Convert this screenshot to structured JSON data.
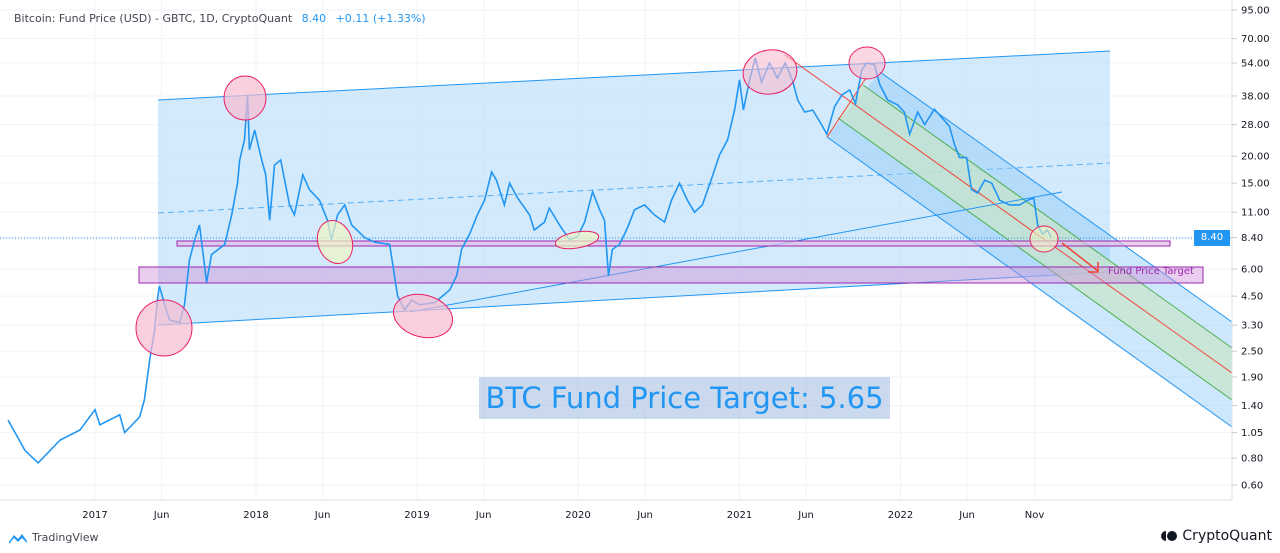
{
  "legend": {
    "title": "Bitcoin: Fund Price (USD) - GBTC, 1D, CryptoQuant",
    "last": "8.40",
    "change": "+0.11 (+1.33%)"
  },
  "annotations": {
    "big_label": "BTC Fund Price Target: 5.65",
    "zone_label": "Fund Price Target",
    "last_price_tag": "8.40"
  },
  "footer": {
    "left_brand": "TradingView",
    "right_brand": "CryptoQuant"
  },
  "colors": {
    "series": "#2196f3",
    "channel_fill": "#bbdefb",
    "zone": "#9c27b0",
    "highlight": "#e91e63",
    "pitchfork_median": "#f44336",
    "pitchfork_inner": "#4caf50"
  },
  "chart_data": {
    "type": "line",
    "title": "Bitcoin: Fund Price (USD) - GBTC, 1D, CryptoQuant",
    "y_scale": "log",
    "ylim": [
      0.55,
      95
    ],
    "grid": true,
    "y_ticks": [
      "95.00",
      "70.00",
      "54.00",
      "38.00",
      "28.00",
      "20.00",
      "15.00",
      "11.00",
      "8.40",
      "6.00",
      "4.50",
      "3.30",
      "2.50",
      "1.90",
      "1.40",
      "1.05",
      "0.80",
      "0.60"
    ],
    "x_ticks": [
      {
        "label": "2017",
        "date": "2017-01-01"
      },
      {
        "label": "Jun",
        "date": "2017-06-01"
      },
      {
        "label": "2018",
        "date": "2018-01-01"
      },
      {
        "label": "Jun",
        "date": "2018-06-01"
      },
      {
        "label": "2019",
        "date": "2019-01-01"
      },
      {
        "label": "Jun",
        "date": "2019-06-01"
      },
      {
        "label": "2020",
        "date": "2020-01-01"
      },
      {
        "label": "Jun",
        "date": "2020-06-01"
      },
      {
        "label": "2021",
        "date": "2021-01-01"
      },
      {
        "label": "Jun",
        "date": "2021-06-01"
      },
      {
        "label": "2022",
        "date": "2022-01-01"
      },
      {
        "label": "Jun",
        "date": "2022-06-01"
      },
      {
        "label": "Nov",
        "date": "2022-11-01"
      }
    ],
    "series": [
      {
        "points": [
          [
            "2016-06-18",
            1.2
          ],
          [
            "2016-07-26",
            0.87
          ],
          [
            "2016-08-25",
            0.76
          ],
          [
            "2016-10-14",
            0.97
          ],
          [
            "2016-11-28",
            1.08
          ],
          [
            "2017-01-01",
            1.34
          ],
          [
            "2017-01-12",
            1.14
          ],
          [
            "2017-02-26",
            1.27
          ],
          [
            "2017-03-09",
            1.05
          ],
          [
            "2017-04-12",
            1.24
          ],
          [
            "2017-04-23",
            1.49
          ],
          [
            "2017-05-05",
            2.28
          ],
          [
            "2017-05-16",
            3.14
          ],
          [
            "2017-05-23",
            4.41
          ],
          [
            "2017-05-27",
            5.0
          ],
          [
            "2017-06-08",
            4.1
          ],
          [
            "2017-06-19",
            3.49
          ],
          [
            "2017-07-12",
            3.4
          ],
          [
            "2017-07-23",
            4.1
          ],
          [
            "2017-08-03",
            6.6
          ],
          [
            "2017-08-15",
            8.2
          ],
          [
            "2017-08-26",
            9.6
          ],
          [
            "2017-09-11",
            5.2
          ],
          [
            "2017-09-22",
            7.0
          ],
          [
            "2017-10-22",
            7.8
          ],
          [
            "2017-11-07",
            10.7
          ],
          [
            "2017-11-20",
            15.0
          ],
          [
            "2017-11-25",
            19.2
          ],
          [
            "2017-12-06",
            23.8
          ],
          [
            "2017-12-13",
            38.5
          ],
          [
            "2017-12-17",
            21.4
          ],
          [
            "2017-12-29",
            26.4
          ],
          [
            "2018-01-14",
            19.2
          ],
          [
            "2018-01-23",
            16.4
          ],
          [
            "2018-02-01",
            10.1
          ],
          [
            "2018-02-12",
            18.2
          ],
          [
            "2018-02-26",
            19.2
          ],
          [
            "2018-03-18",
            11.9
          ],
          [
            "2018-03-29",
            10.7
          ],
          [
            "2018-04-17",
            16.4
          ],
          [
            "2018-05-02",
            14.0
          ],
          [
            "2018-05-25",
            12.5
          ],
          [
            "2018-06-12",
            10.1
          ],
          [
            "2018-06-21",
            8.2
          ],
          [
            "2018-07-05",
            10.7
          ],
          [
            "2018-07-21",
            11.9
          ],
          [
            "2018-08-06",
            9.6
          ],
          [
            "2018-09-04",
            8.4
          ],
          [
            "2018-09-27",
            8.0
          ],
          [
            "2018-10-31",
            7.8
          ],
          [
            "2018-11-06",
            6.5
          ],
          [
            "2018-11-18",
            4.5
          ],
          [
            "2018-12-04",
            3.88
          ],
          [
            "2018-12-20",
            4.32
          ],
          [
            "2019-01-07",
            4.1
          ],
          [
            "2019-02-10",
            4.2
          ],
          [
            "2019-03-16",
            4.8
          ],
          [
            "2019-04-01",
            5.6
          ],
          [
            "2019-04-12",
            7.4
          ],
          [
            "2019-04-30",
            8.7
          ],
          [
            "2019-05-18",
            10.7
          ],
          [
            "2019-06-03",
            12.5
          ],
          [
            "2019-06-19",
            16.9
          ],
          [
            "2019-06-30",
            15.5
          ],
          [
            "2019-07-18",
            11.9
          ],
          [
            "2019-07-30",
            15.0
          ],
          [
            "2019-08-17",
            12.8
          ],
          [
            "2019-09-13",
            10.7
          ],
          [
            "2019-09-24",
            9.1
          ],
          [
            "2019-10-17",
            9.9
          ],
          [
            "2019-10-28",
            11.5
          ],
          [
            "2019-11-20",
            9.6
          ],
          [
            "2019-12-13",
            8.2
          ],
          [
            "2019-12-31",
            8.5
          ],
          [
            "2020-01-16",
            9.9
          ],
          [
            "2020-02-03",
            13.7
          ],
          [
            "2020-02-19",
            11.3
          ],
          [
            "2020-03-01",
            10.1
          ],
          [
            "2020-03-10",
            5.6
          ],
          [
            "2020-03-19",
            7.4
          ],
          [
            "2020-04-04",
            7.8
          ],
          [
            "2020-04-22",
            9.3
          ],
          [
            "2020-05-08",
            11.3
          ],
          [
            "2020-05-31",
            11.9
          ],
          [
            "2020-06-22",
            10.7
          ],
          [
            "2020-07-15",
            9.9
          ],
          [
            "2020-07-31",
            12.5
          ],
          [
            "2020-08-18",
            15.0
          ],
          [
            "2020-09-05",
            12.5
          ],
          [
            "2020-09-21",
            11.0
          ],
          [
            "2020-10-09",
            11.9
          ],
          [
            "2020-10-30",
            15.8
          ],
          [
            "2020-11-17",
            20.3
          ],
          [
            "2020-12-05",
            23.8
          ],
          [
            "2020-12-21",
            32.7
          ],
          [
            "2021-01-01",
            45.1
          ],
          [
            "2021-01-10",
            32.7
          ],
          [
            "2021-01-24",
            45.1
          ],
          [
            "2021-02-06",
            57
          ],
          [
            "2021-02-20",
            44
          ],
          [
            "2021-03-10",
            54
          ],
          [
            "2021-03-28",
            46
          ],
          [
            "2021-04-15",
            54
          ],
          [
            "2021-05-01",
            45
          ],
          [
            "2021-05-13",
            36.4
          ],
          [
            "2021-05-29",
            32
          ],
          [
            "2021-06-16",
            32.7
          ],
          [
            "2021-07-06",
            28
          ],
          [
            "2021-07-18",
            25.3
          ],
          [
            "2021-08-05",
            34
          ],
          [
            "2021-08-21",
            38.4
          ],
          [
            "2021-09-08",
            40.5
          ],
          [
            "2021-09-21",
            35
          ],
          [
            "2021-10-05",
            50
          ],
          [
            "2021-10-16",
            54
          ],
          [
            "2021-11-03",
            53
          ],
          [
            "2021-11-15",
            43
          ],
          [
            "2021-12-03",
            36.4
          ],
          [
            "2021-12-26",
            34.5
          ],
          [
            "2022-01-10",
            32
          ],
          [
            "2022-01-22",
            25.3
          ],
          [
            "2022-02-09",
            32
          ],
          [
            "2022-02-25",
            28
          ],
          [
            "2022-03-19",
            33
          ],
          [
            "2022-04-04",
            30.3
          ],
          [
            "2022-04-22",
            27.5
          ],
          [
            "2022-05-04",
            22.5
          ],
          [
            "2022-05-15",
            19.7
          ],
          [
            "2022-05-31",
            19.7
          ],
          [
            "2022-06-11",
            14.0
          ],
          [
            "2022-06-25",
            13.5
          ],
          [
            "2022-07-11",
            15.5
          ],
          [
            "2022-07-27",
            15.0
          ],
          [
            "2022-08-14",
            12.5
          ],
          [
            "2022-09-05",
            11.9
          ],
          [
            "2022-09-28",
            11.9
          ],
          [
            "2022-10-16",
            12.5
          ],
          [
            "2022-10-30",
            12.8
          ],
          [
            "2022-11-08",
            9.6
          ],
          [
            "2022-11-19",
            8.7
          ],
          [
            "2022-11-30",
            9.1
          ],
          [
            "2022-12-09",
            8.4
          ]
        ]
      }
    ],
    "last_value": 8.4
  }
}
